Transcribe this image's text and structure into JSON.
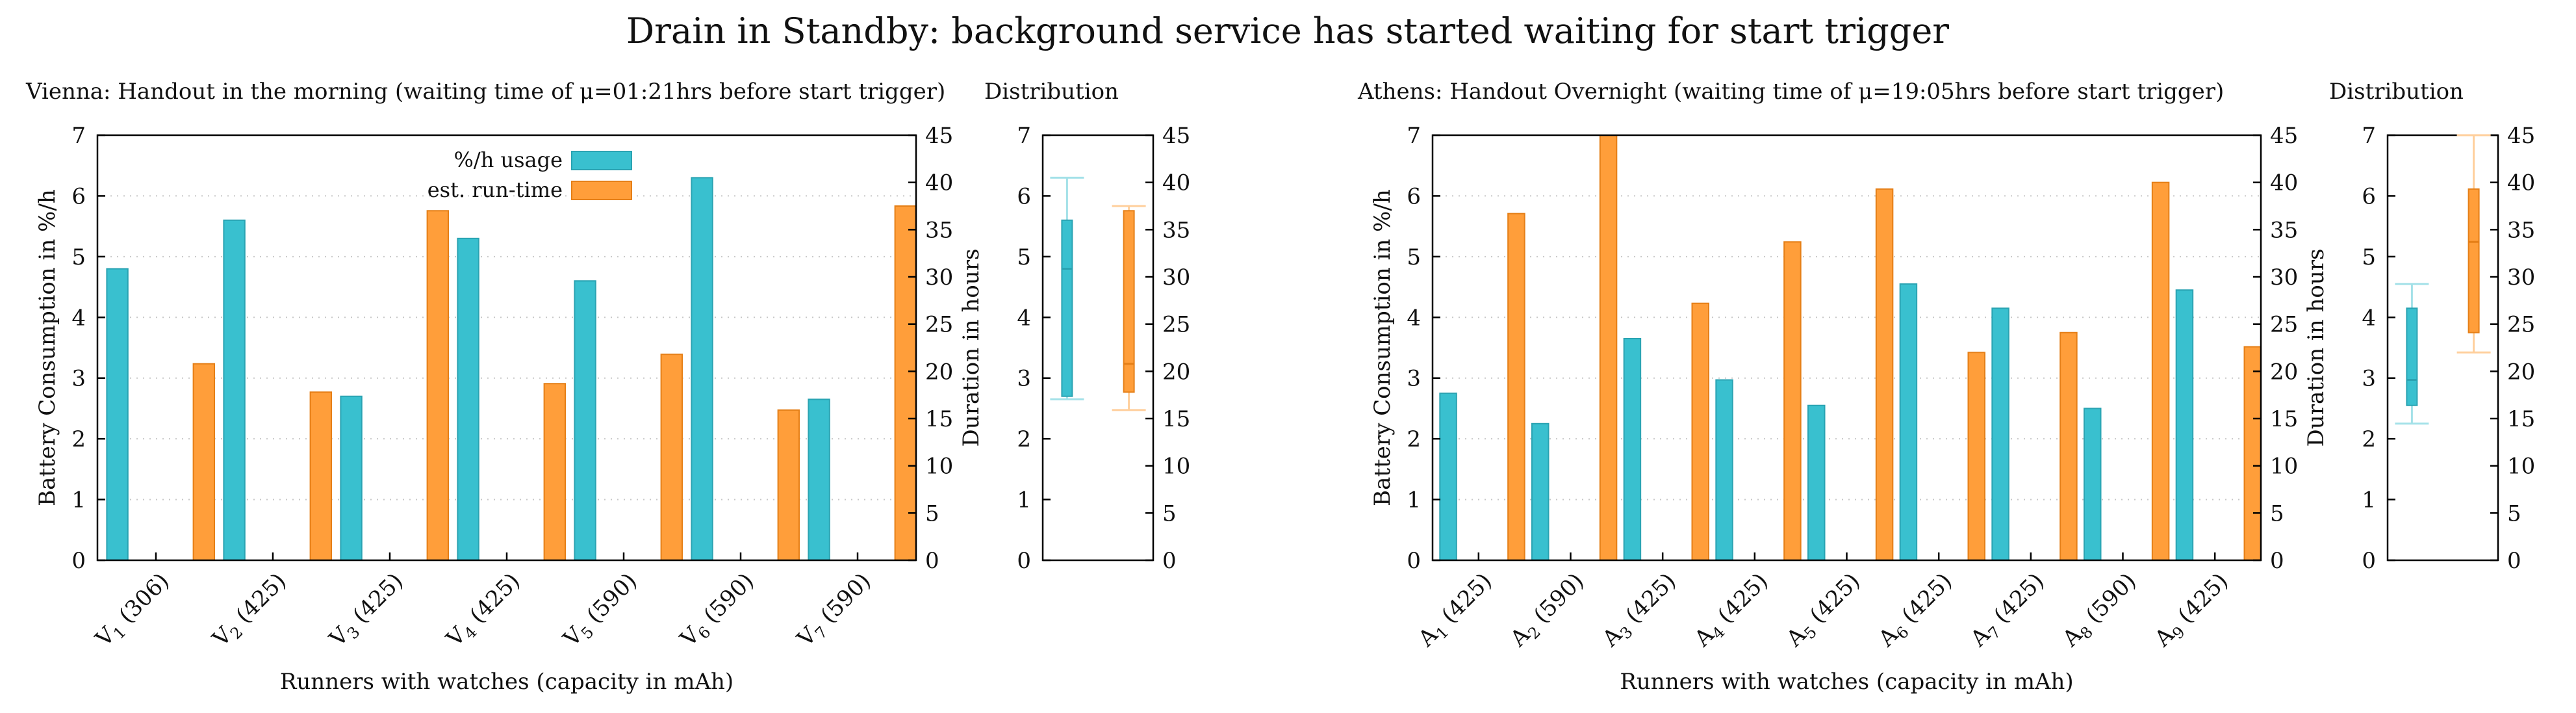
{
  "figure_title": "Drain in Standby: background service has started waiting for start trigger",
  "colors": {
    "usage": "#39c0cf",
    "usage_dark": "#2aa3b2",
    "runtime": "#ff9e3a",
    "runtime_dark": "#e57f17",
    "grid": "#c8c8c8"
  },
  "legend": {
    "usage_label": "%/h usage",
    "runtime_label": "est. run-time",
    "placement": "top-center"
  },
  "chart_data": [
    {
      "type": "bar",
      "id": "vienna",
      "title": "Vienna: Handout in the morning (waiting time of μ=01:21hrs before start trigger)",
      "xlabel": "Runners with watches (capacity in mAh)",
      "ylabel": "Battery Consumption in %/h",
      "y2label": "Duration in hours",
      "ylim": [
        0,
        7
      ],
      "y2lim": [
        0,
        45
      ],
      "yticks": [
        "0",
        "1",
        "2",
        "3",
        "4",
        "5",
        "6",
        "7"
      ],
      "y2ticks": [
        "0",
        "5",
        "10",
        "15",
        "20",
        "25",
        "30",
        "35",
        "40",
        "45"
      ],
      "grid": true,
      "categories": [
        {
          "letter": "V",
          "sub": "1",
          "cap": " (306)"
        },
        {
          "letter": "V",
          "sub": "2",
          "cap": " (425)"
        },
        {
          "letter": "V",
          "sub": "3",
          "cap": " (425)"
        },
        {
          "letter": "V",
          "sub": "4",
          "cap": " (425)"
        },
        {
          "letter": "V",
          "sub": "5",
          "cap": " (590)"
        },
        {
          "letter": "V",
          "sub": "6",
          "cap": " (590)"
        },
        {
          "letter": "V",
          "sub": "7",
          "cap": " (590)"
        }
      ],
      "series": [
        {
          "name": "%/h usage",
          "axis": "left",
          "values": [
            4.8,
            5.6,
            2.7,
            5.3,
            4.6,
            6.3,
            2.65
          ]
        },
        {
          "name": "est. run-time",
          "axis": "right",
          "values": [
            20.8,
            17.8,
            37.0,
            18.7,
            21.8,
            15.9,
            37.5
          ]
        }
      ],
      "legend_shown": true
    },
    {
      "type": "box",
      "id": "vienna-distribution",
      "title": "Distribution",
      "ylim": [
        0,
        7
      ],
      "y2lim": [
        0,
        45
      ],
      "yticks": [
        "0",
        "1",
        "2",
        "3",
        "4",
        "5",
        "6",
        "7"
      ],
      "y2ticks": [
        "0",
        "5",
        "10",
        "15",
        "20",
        "25",
        "30",
        "35",
        "40",
        "45"
      ],
      "boxes": [
        {
          "series": "%/h usage",
          "axis": "left",
          "min": 2.65,
          "q1": 2.7,
          "median": 4.8,
          "q3": 5.6,
          "max": 6.3
        },
        {
          "series": "est. run-time",
          "axis": "right",
          "min": 15.9,
          "q1": 17.8,
          "median": 20.8,
          "q3": 37.0,
          "max": 37.5
        }
      ]
    },
    {
      "type": "bar",
      "id": "athens",
      "title": "Athens: Handout Overnight (waiting time of μ=19:05hrs before start trigger)",
      "xlabel": "Runners with watches (capacity in mAh)",
      "ylabel": "Battery Consumption in %/h",
      "y2label": "Duration in hours",
      "ylim": [
        0,
        7
      ],
      "y2lim": [
        0,
        45
      ],
      "yticks": [
        "0",
        "1",
        "2",
        "3",
        "4",
        "5",
        "6",
        "7"
      ],
      "y2ticks": [
        "0",
        "5",
        "10",
        "15",
        "20",
        "25",
        "30",
        "35",
        "40",
        "45"
      ],
      "grid": true,
      "categories": [
        {
          "letter": "A",
          "sub": "1",
          "cap": " (425)"
        },
        {
          "letter": "A",
          "sub": "2",
          "cap": " (590)"
        },
        {
          "letter": "A",
          "sub": "3",
          "cap": " (425)"
        },
        {
          "letter": "A",
          "sub": "4",
          "cap": " (425)"
        },
        {
          "letter": "A",
          "sub": "5",
          "cap": " (425)"
        },
        {
          "letter": "A",
          "sub": "6",
          "cap": " (425)"
        },
        {
          "letter": "A",
          "sub": "7",
          "cap": " (425)"
        },
        {
          "letter": "A",
          "sub": "8",
          "cap": " (590)"
        },
        {
          "letter": "A",
          "sub": "9",
          "cap": " (425)"
        }
      ],
      "series": [
        {
          "name": "%/h usage",
          "axis": "left",
          "values": [
            2.75,
            2.25,
            3.65,
            2.97,
            2.55,
            4.55,
            4.15,
            2.5,
            4.45
          ]
        },
        {
          "name": "est. run-time",
          "axis": "right",
          "values": [
            36.7,
            45.0,
            27.2,
            33.7,
            39.3,
            22.0,
            24.1,
            40.0,
            22.6
          ]
        }
      ],
      "legend_shown": false
    },
    {
      "type": "box",
      "id": "athens-distribution",
      "title": "Distribution",
      "ylim": [
        0,
        7
      ],
      "y2lim": [
        0,
        45
      ],
      "yticks": [
        "0",
        "1",
        "2",
        "3",
        "4",
        "5",
        "6",
        "7"
      ],
      "y2ticks": [
        "0",
        "5",
        "10",
        "15",
        "20",
        "25",
        "30",
        "35",
        "40",
        "45"
      ],
      "boxes": [
        {
          "series": "%/h usage",
          "axis": "left",
          "min": 2.25,
          "q1": 2.55,
          "median": 2.97,
          "q3": 4.15,
          "max": 4.55
        },
        {
          "series": "est. run-time",
          "axis": "right",
          "min": 22.0,
          "q1": 24.1,
          "median": 33.7,
          "q3": 39.3,
          "max": 45.0
        }
      ]
    }
  ]
}
